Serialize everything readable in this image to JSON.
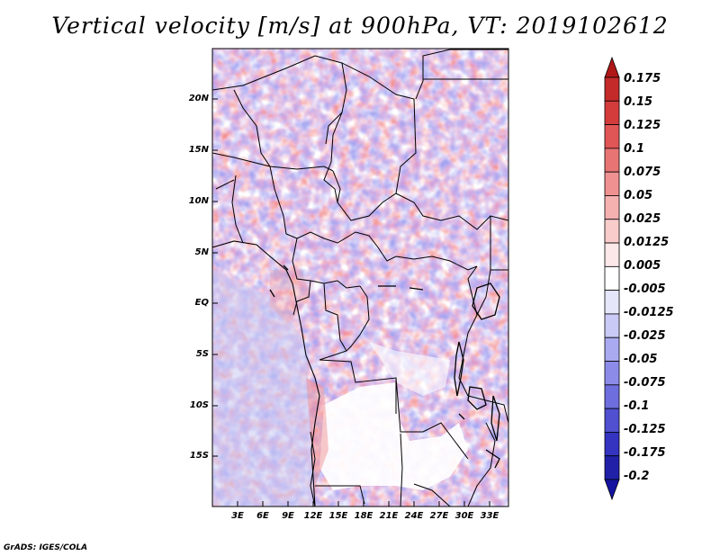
{
  "title": "Vertical velocity [m/s] at 900hPa, VT: 2019102612",
  "footer": "GrADS: IGES/COLA",
  "map": {
    "lat_ticks": [
      "20N",
      "15N",
      "10N",
      "5N",
      "EQ",
      "5S",
      "10S",
      "15S"
    ],
    "lon_ticks": [
      "3E",
      "6E",
      "9E",
      "12E",
      "15E",
      "18E",
      "21E",
      "24E",
      "27E",
      "30E",
      "33E"
    ]
  },
  "colorbar": {
    "labels": [
      "0.175",
      "0.15",
      "0.125",
      "0.1",
      "0.075",
      "0.05",
      "0.025",
      "0.0125",
      "0.005",
      "-0.005",
      "-0.0125",
      "-0.025",
      "-0.05",
      "-0.075",
      "-0.1",
      "-0.125",
      "-0.175",
      "-0.2"
    ],
    "colors": [
      "#b01717",
      "#c42a2a",
      "#d43c3c",
      "#e05656",
      "#e87474",
      "#ef9191",
      "#f5b0b0",
      "#f9cccc",
      "#fce8e8",
      "#ffffff",
      "#e6e6fb",
      "#cacaf6",
      "#aaaaf0",
      "#8c8ce8",
      "#6e6ede",
      "#5050d0",
      "#3434c0",
      "#2020a8",
      "#1414a0"
    ]
  }
}
